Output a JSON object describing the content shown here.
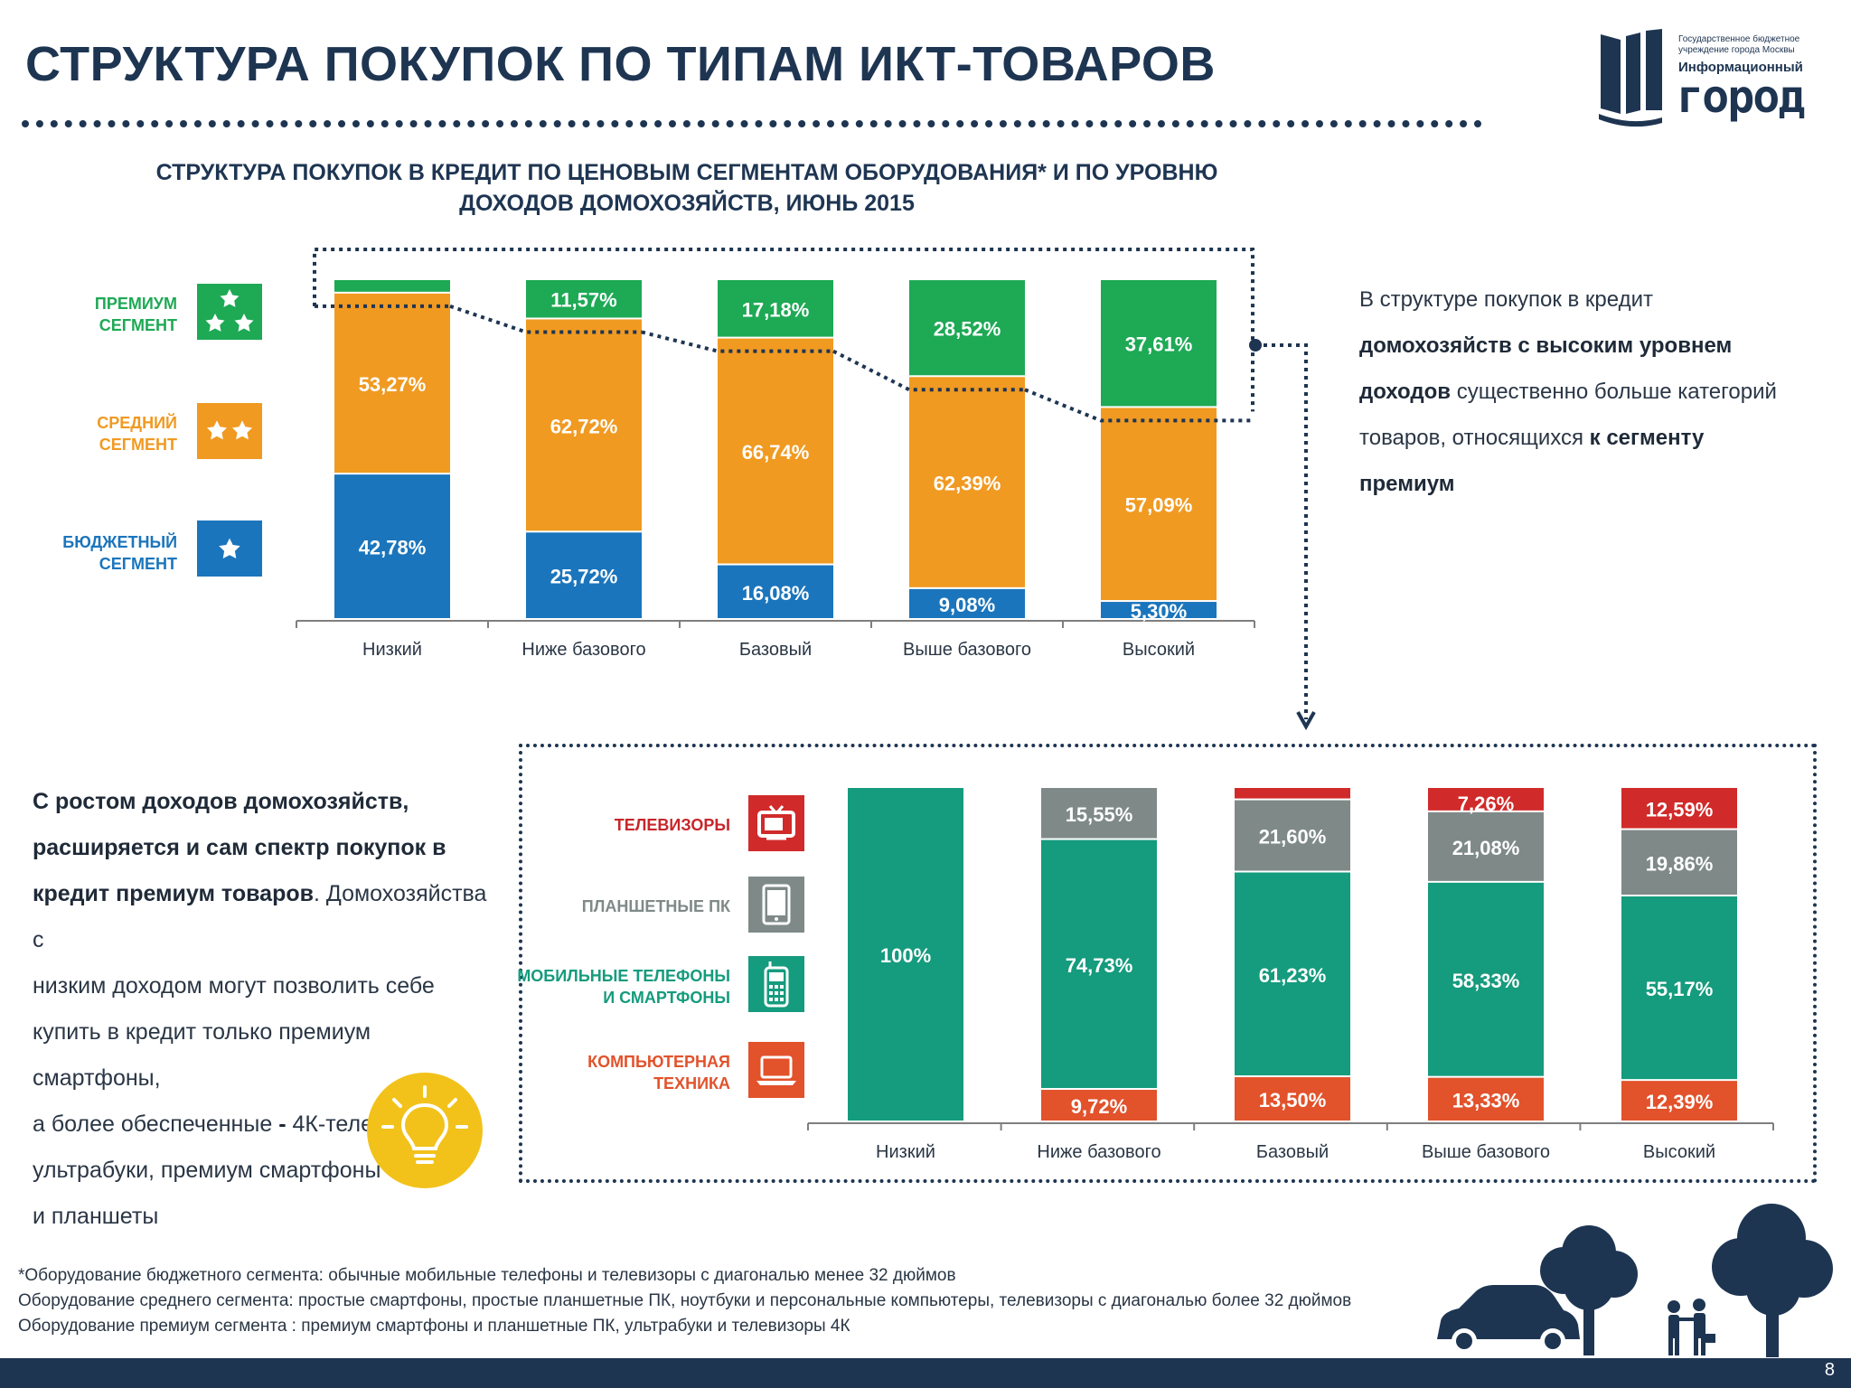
{
  "page_title": "СТРУКТУРА ПОКУПОК ПО ТИПАМ ИКТ-ТОВАРОВ",
  "logo": {
    "line1": "Государственное бюджетное",
    "line2": "учреждение города Москвы",
    "line3": "Информационный",
    "line4": "город",
    "icon": "book-icon"
  },
  "chart1_title_line1": "СТРУКТУРА ПОКУПОК В КРЕДИТ ПО ЦЕНОВЫМ СЕГМЕНТАМ ОБОРУДОВАНИЯ* И ПО УРОВНЮ",
  "chart1_title_line2": "ДОХОДОВ ДОМОХОЗЯЙСТВ, ИЮНЬ 2015",
  "legend1": {
    "premium_line1": "ПРЕМИУМ",
    "premium_line2": "СЕГМЕНТ",
    "middle_line1": "СРЕДНИЙ",
    "middle_line2": "СЕГМЕНТ",
    "budget_line1": "БЮДЖЕТНЫЙ",
    "budget_line2": "СЕГМЕНТ",
    "icons": [
      "star-icon"
    ]
  },
  "legend2": {
    "tv": "ТЕЛЕВИЗОРЫ",
    "tablets": "ПЛАНШЕТНЫЕ ПК",
    "mobile_line1": "МОБИЛЬНЫЕ ТЕЛЕФОНЫ",
    "mobile_line2": "И СМАРТФОНЫ",
    "computer_line1": "КОМПЬЮТЕРНАЯ",
    "computer_line2": "ТЕХНИКА",
    "icons": [
      "tv-icon",
      "tablet-icon",
      "phone-icon",
      "laptop-icon"
    ]
  },
  "right_text": {
    "p1": "В структуре покупок в кредит",
    "b1": "домохозяйств с высоким уровнем",
    "b2": "доходов",
    "p2": " существенно больше категорий",
    "p3": "товаров, относящихся ",
    "b3": "к сегменту",
    "b4": "премиум"
  },
  "left_text": {
    "b1": "С ростом доходов домохозяйств,",
    "b2": "расширяется и сам спектр покупок  в",
    "b3": "кредит премиум товаров",
    "p1": ".  Домохозяйства с",
    "p2": "низким доходом  могут позволить себе",
    "p3": "купить в кредит только премиум смартфоны,",
    "p4": "а более обеспеченные ",
    "b4": "-",
    "p5": " 4К-телевизоры,",
    "p6": "ультрабуки, премиум смартфоны",
    "p7": "и планшеты",
    "icon": "lightbulb-icon"
  },
  "footnotes": [
    "*Оборудование бюджетного сегмента: обычные мобильные телефоны и телевизоры с диагональю менее 32 дюймов",
    "Оборудование среднего сегмента: простые смартфоны, простые планшетные ПК, ноутбуки и персональные компьютеры, телевизоры с диагональю более 32 дюймов",
    "Оборудование премиум сегмента : премиум смартфоны и планшетные ПК, ультрабуки и телевизоры 4К"
  ],
  "page_number": "8",
  "chart_data": [
    {
      "type": "bar",
      "stacked": true,
      "title": "СТРУКТУРА ПОКУПОК В КРЕДИТ ПО ЦЕНОВЫМ СЕГМЕНТАМ ОБОРУДОВАНИЯ* И ПО УРОВНЮ ДОХОДОВ ДОМОХОЗЯЙСТВ, ИЮНЬ 2015",
      "categories": [
        "Низкий",
        "Ниже базового",
        "Базовый",
        "Выше базового",
        "Высокий"
      ],
      "ylim": [
        0,
        100
      ],
      "legend_placement": "left",
      "series": [
        {
          "name": "БЮДЖЕТНЫЙ СЕГМЕНТ",
          "color": "#1b75bc",
          "values": [
            42.78,
            25.72,
            16.08,
            9.08,
            5.3
          ],
          "labels": [
            "42,78%",
            "25,72%",
            "16,08%",
            "9,08%",
            "5,30%"
          ]
        },
        {
          "name": "СРЕДНИЙ СЕГМЕНТ",
          "color": "#f09a22",
          "values": [
            53.27,
            62.72,
            66.74,
            62.39,
            57.09
          ],
          "labels": [
            "53,27%",
            "62,72%",
            "66,74%",
            "62,39%",
            "57,09%"
          ]
        },
        {
          "name": "ПРЕМИУМ СЕГМЕНТ",
          "color": "#1ea955",
          "values": [
            3.95,
            11.57,
            17.18,
            28.52,
            37.61
          ],
          "labels": [
            "3,95%",
            "11,57%",
            "17,18%",
            "28,52%",
            "37,61%"
          ]
        }
      ]
    },
    {
      "type": "bar",
      "stacked": true,
      "categories": [
        "Низкий",
        "Ниже базового",
        "Базовый",
        "Выше базового",
        "Высокий"
      ],
      "ylim": [
        0,
        100
      ],
      "legend_placement": "left",
      "series": [
        {
          "name": "КОМПЬЮТЕРНАЯ ТЕХНИКА",
          "color": "#e2522b",
          "values": [
            0,
            9.72,
            13.5,
            13.33,
            12.39
          ],
          "labels": [
            "",
            "9,72%",
            "13,50%",
            "13,33%",
            "12,39%"
          ]
        },
        {
          "name": "МОБИЛЬНЫЕ ТЕЛЕФОНЫ И СМАРТФОНЫ",
          "color": "#159b7d",
          "values": [
            100,
            74.73,
            61.23,
            58.33,
            55.17
          ],
          "labels": [
            "100%",
            "74,73%",
            "61,23%",
            "58,33%",
            "55,17%"
          ]
        },
        {
          "name": "ПЛАНШЕТНЫЕ ПК",
          "color": "#7f8a88",
          "values": [
            0,
            15.55,
            21.6,
            21.08,
            19.86
          ],
          "labels": [
            "",
            "15,55%",
            "21,60%",
            "21,08%",
            "19,86%"
          ]
        },
        {
          "name": "ТЕЛЕВИЗОРЫ",
          "color": "#d12a2a",
          "values": [
            0,
            0,
            3.67,
            7.26,
            12.59
          ],
          "labels": [
            "",
            "",
            "3,67%",
            "7,26%",
            "12,59%"
          ]
        }
      ]
    }
  ],
  "colors": {
    "navy": "#1e3552",
    "premium_green": "#1ea955",
    "middle_orange": "#f09a22",
    "budget_blue": "#1b75bc",
    "tv_red": "#d12a2a",
    "tablet_gray": "#7f8a88",
    "mobile_teal": "#159b7d",
    "computer_orange": "#e2522b",
    "bulb_yellow": "#f2c21b"
  }
}
